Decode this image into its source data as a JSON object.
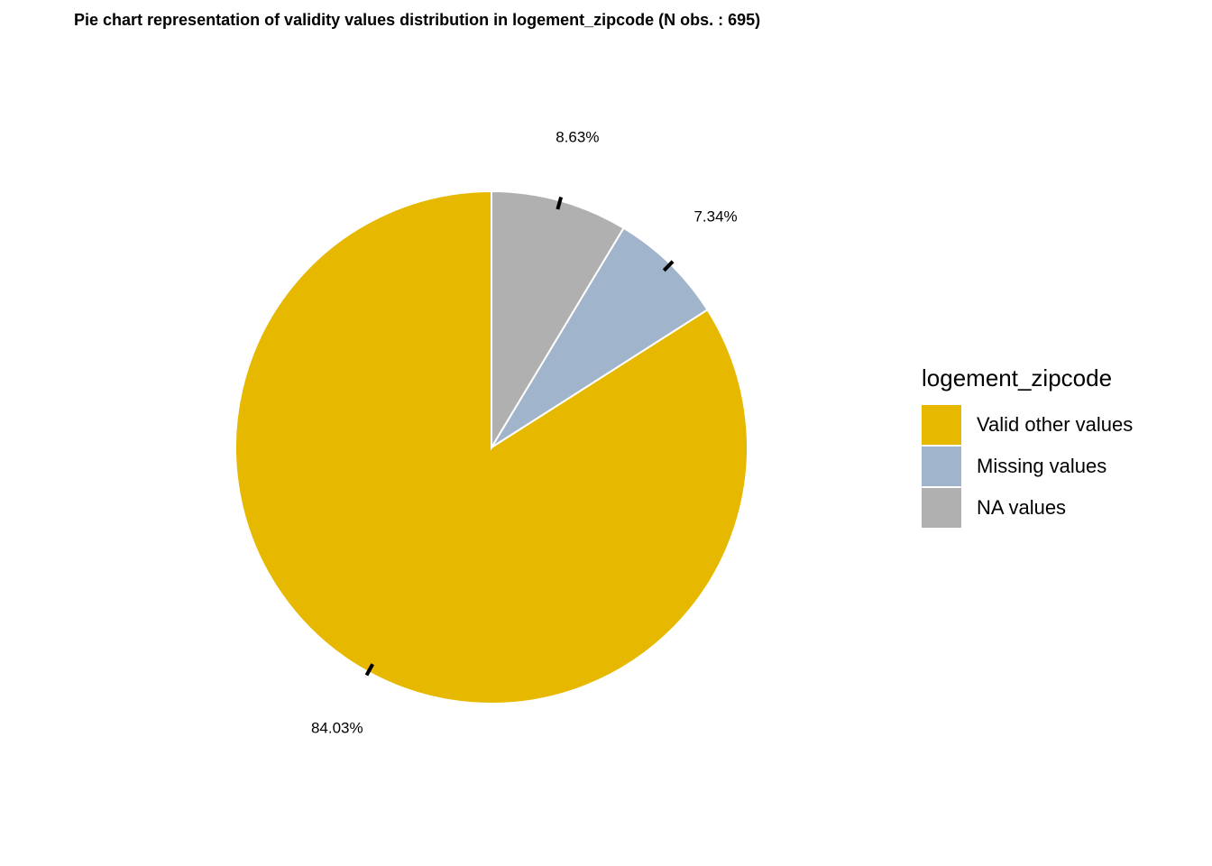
{
  "chart_data": {
    "type": "pie",
    "title": "Pie chart representation of validity values distribution in logement_zipcode (N obs. : 695)",
    "legend_title": "logement_zipcode",
    "legend_position": "right",
    "start": "12 o'clock",
    "direction": "counterclockwise",
    "slices": [
      {
        "name": "Valid other values",
        "value": 84.03,
        "label": "84.03%",
        "color": "#E7B800"
      },
      {
        "name": "Missing values",
        "value": 7.34,
        "label": "7.34%",
        "color": "#A0B4CC"
      },
      {
        "name": "NA values",
        "value": 8.63,
        "label": "8.63%",
        "color": "#B0B0B0"
      }
    ],
    "legend_order": [
      "Valid other values",
      "Missing values",
      "NA values"
    ]
  }
}
